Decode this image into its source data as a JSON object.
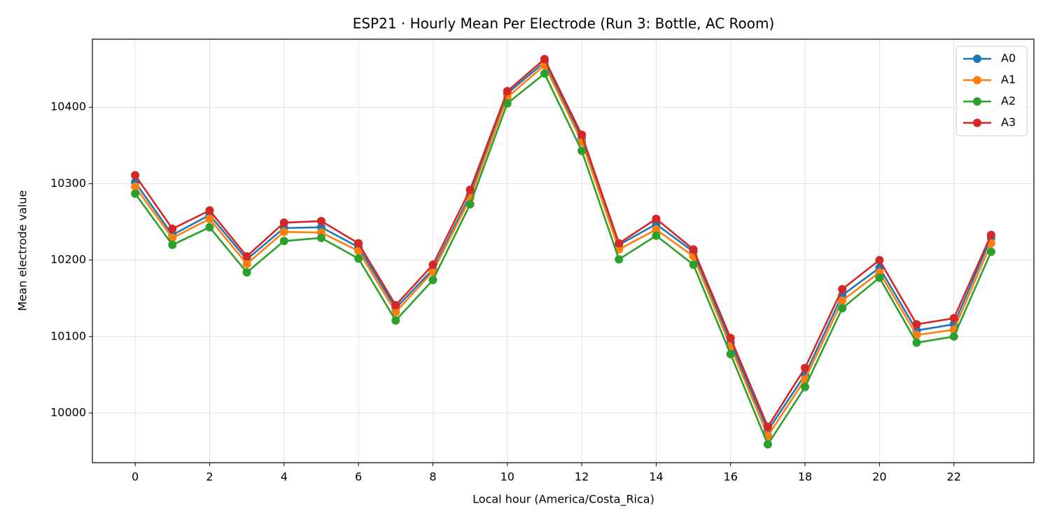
{
  "chart_data": {
    "type": "line",
    "title": "ESP21 · Hourly Mean Per Electrode (Run 3: Bottle, AC Room)",
    "x_label": "Local hour (America/Costa_Rica)",
    "y_label": "Mean electrode value",
    "x": [
      0,
      1,
      2,
      3,
      4,
      5,
      6,
      7,
      8,
      9,
      10,
      11,
      12,
      13,
      14,
      15,
      16,
      17,
      18,
      19,
      20,
      21,
      22,
      23
    ],
    "series": [
      {
        "name": "A0",
        "color": "#1f77b4",
        "values": [
          10302,
          10233,
          10259,
          10201,
          10242,
          10243,
          10217,
          10137,
          10188,
          10285,
          10418,
          10459,
          10359,
          10220,
          10247,
          10211,
          10092,
          9977,
          10050,
          10154,
          10190,
          10108,
          10116,
          10229
        ]
      },
      {
        "name": "A1",
        "color": "#ff7f0e",
        "values": [
          10296,
          10229,
          10254,
          10195,
          10237,
          10236,
          10212,
          10132,
          10185,
          10281,
          10413,
          10455,
          10355,
          10214,
          10240,
          10205,
          10087,
          9970,
          10044,
          10147,
          10184,
          10102,
          10109,
          10222
        ]
      },
      {
        "name": "A2",
        "color": "#2ca02c",
        "values": [
          10287,
          10220,
          10243,
          10184,
          10225,
          10229,
          10202,
          10121,
          10174,
          10273,
          10405,
          10444,
          10343,
          10201,
          10232,
          10194,
          10077,
          9959,
          10034,
          10137,
          10177,
          10092,
          10100,
          10211
        ]
      },
      {
        "name": "A3",
        "color": "#d62728",
        "values": [
          10311,
          10241,
          10265,
          10205,
          10249,
          10251,
          10222,
          10141,
          10194,
          10292,
          10421,
          10463,
          10364,
          10222,
          10254,
          10214,
          10098,
          9982,
          10059,
          10162,
          10200,
          10116,
          10124,
          10233
        ]
      }
    ],
    "xlim": [
      -1.15,
      24.15
    ],
    "xticks": [
      0,
      2,
      4,
      6,
      8,
      10,
      12,
      14,
      16,
      18,
      20,
      22
    ],
    "ylim": [
      9935,
      10489
    ],
    "yticks": [
      10000,
      10100,
      10200,
      10300,
      10400
    ],
    "grid": true,
    "legend": "upper right"
  }
}
